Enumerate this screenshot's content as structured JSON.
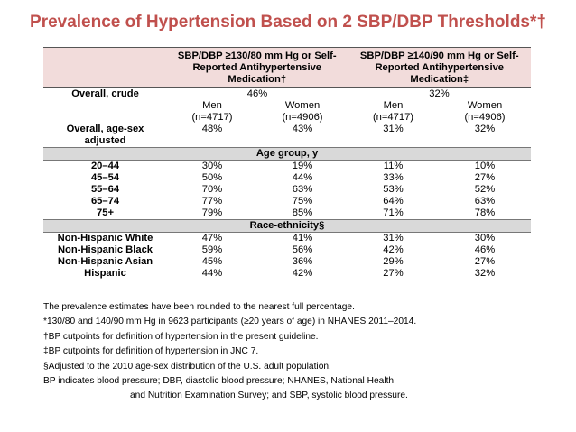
{
  "title": "Prevalence of Hypertension Based on 2 SBP/DBP Thresholds*†",
  "table": {
    "col1_header": "SBP/DBP ≥130/80 mm Hg or Self-Reported Antihypertensive Medication†",
    "col2_header": "SBP/DBP ≥140/90 mm Hg or Self-Reported Antihypertensive Medication‡",
    "overall_crude": {
      "label": "Overall, crude",
      "v1": "46%",
      "v2": "32%"
    },
    "sex_row": {
      "men1": "Men",
      "men1_n": "(n=4717)",
      "women1": "Women",
      "women1_n": "(n=4906)",
      "men2": "Men",
      "men2_n": "(n=4717)",
      "women2": "Women",
      "women2_n": "(n=4906)"
    },
    "overall_adjusted": {
      "label": "Overall, age-sex adjusted",
      "values": [
        "48%",
        "43%",
        "31%",
        "32%"
      ]
    },
    "age_section": "Age group, y",
    "age_rows": [
      {
        "label": "20–44",
        "values": [
          "30%",
          "19%",
          "11%",
          "10%"
        ]
      },
      {
        "label": "45–54",
        "values": [
          "50%",
          "44%",
          "33%",
          "27%"
        ]
      },
      {
        "label": "55–64",
        "values": [
          "70%",
          "63%",
          "53%",
          "52%"
        ]
      },
      {
        "label": "65–74",
        "values": [
          "77%",
          "75%",
          "64%",
          "63%"
        ]
      },
      {
        "label": "75+",
        "values": [
          "79%",
          "85%",
          "71%",
          "78%"
        ]
      }
    ],
    "race_section": "Race-ethnicity§",
    "race_rows": [
      {
        "label": "Non-Hispanic White",
        "values": [
          "47%",
          "41%",
          "31%",
          "30%"
        ]
      },
      {
        "label": "Non-Hispanic Black",
        "values": [
          "59%",
          "56%",
          "42%",
          "46%"
        ]
      },
      {
        "label": "Non-Hispanic Asian",
        "values": [
          "45%",
          "36%",
          "29%",
          "27%"
        ]
      },
      {
        "label": "Hispanic",
        "values": [
          "44%",
          "42%",
          "27%",
          "32%"
        ]
      }
    ]
  },
  "notes": [
    "The prevalence estimates have been rounded to the nearest full percentage.",
    "*130/80 and 140/90 mm Hg in 9623 participants (≥20 years of age) in NHANES 2011–2014.",
    "†BP cutpoints for definition of hypertension in the present guideline.",
    "‡BP cutpoints for definition of hypertension in JNC 7.",
    "§Adjusted to the 2010 age-sex distribution of the U.S. adult population.",
    "BP indicates blood pressure; DBP, diastolic blood pressure; NHANES, National Health",
    "and Nutrition Examination Survey; and SBP, systolic blood pressure."
  ]
}
